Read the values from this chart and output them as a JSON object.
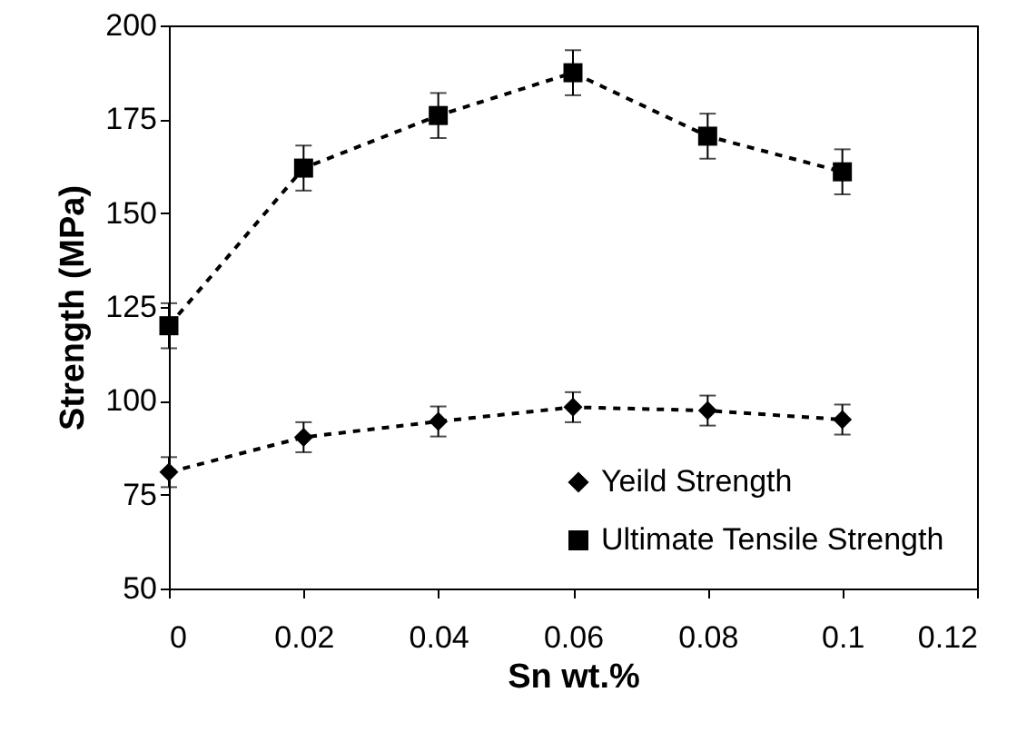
{
  "chart_data": {
    "type": "line",
    "xlabel": "Sn wt.%",
    "ylabel": "Strength (MPa)",
    "x": [
      0,
      0.02,
      0.04,
      0.06,
      0.08,
      0.1
    ],
    "series": [
      {
        "name": "Yeild Strength",
        "color": "#000000",
        "marker": "diamond",
        "values": [
          81,
          90.3,
          94.5,
          98.3,
          97.4,
          95
        ],
        "errors": [
          4,
          4,
          4,
          4,
          4,
          4
        ]
      },
      {
        "name": "Ultimate Tensile Strength",
        "color": "#000000",
        "marker": "square",
        "values": [
          120,
          162,
          176,
          187.4,
          170.5,
          161
        ],
        "errors": [
          6,
          6,
          6,
          6,
          6,
          6
        ]
      }
    ],
    "xlim": [
      0,
      0.12
    ],
    "xticks": [
      0,
      0.02,
      0.04,
      0.06,
      0.08,
      0.1,
      0.12
    ],
    "ylim": [
      50,
      200
    ],
    "yticks": [
      50,
      75,
      100,
      125,
      150,
      175,
      200
    ],
    "grid": false,
    "legend": "bottom right",
    "line_style": "dashed"
  }
}
